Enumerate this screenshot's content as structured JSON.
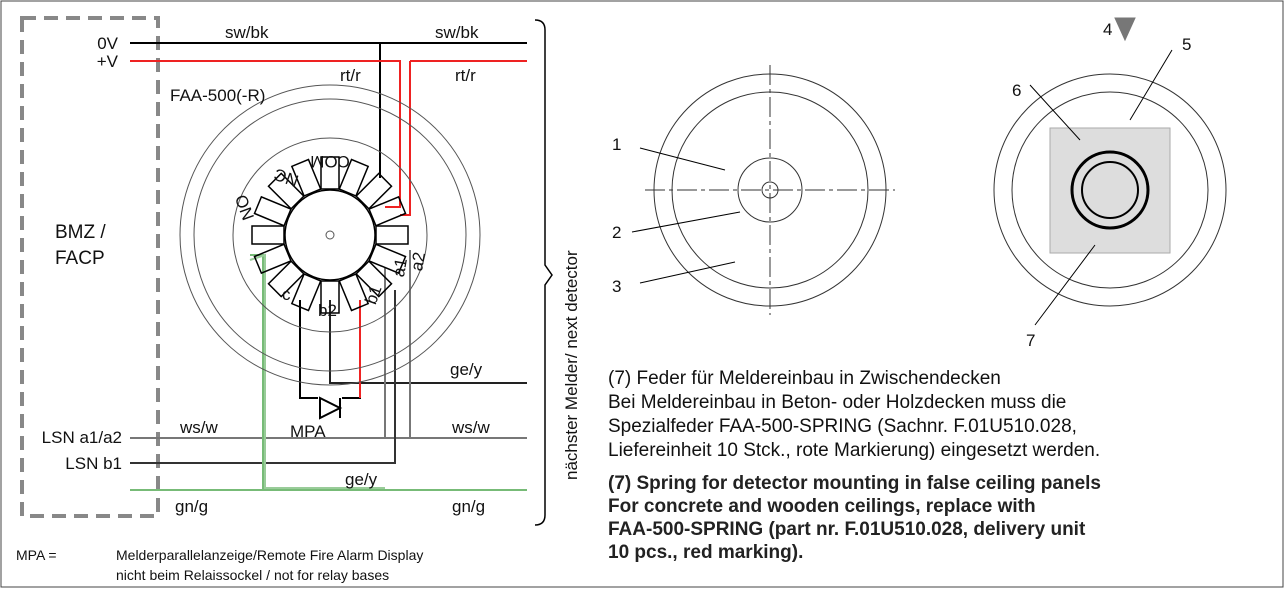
{
  "wiring": {
    "panel_label": [
      "BMZ /",
      "FACP"
    ],
    "terminals": {
      "v0": "0V",
      "vplus": "+V",
      "lsn_a": "LSN a1/a2",
      "lsn_b": "LSN b1"
    },
    "wires": {
      "black_left": "sw/bk",
      "black_right": "sw/bk",
      "red_left": "rt/r",
      "red_right": "rt/r",
      "yellow_upper": "ge/y",
      "yellow_lower": "ge/y",
      "white_left": "ws/w",
      "white_right": "ws/w",
      "green_left": "gn/g",
      "green_right": "gn/g"
    },
    "base_label": "FAA-500(-R)",
    "contacts": {
      "com": "COM",
      "nc": "NC",
      "no": "NO",
      "a1": "a1",
      "a2": "a2",
      "b1": "b1",
      "b2": "b2",
      "c": "c"
    },
    "mpa": "MPA",
    "next_detector": "nächster Melder/ next detector"
  },
  "footnote": {
    "key": "MPA =",
    "lines": [
      "Melderparallelanzeige/Remote Fire Alarm Display",
      "nicht beim Relaissockel / not for relay bases"
    ]
  },
  "callouts": [
    "1",
    "2",
    "3",
    "4",
    "5",
    "6",
    "7"
  ],
  "note_de": [
    "(7) Feder für Meldereinbau in Zwischendecken",
    "Bei Meldereinbau in Beton- oder Holzdecken muss die",
    "Spezialfeder FAA-500-SPRING (Sachnr. F.01U510.028,",
    "Liefereinheit 10 Stck., rote Markierung) eingesetzt werden."
  ],
  "note_en": [
    "(7) Spring for detector mounting in false ceiling panels",
    "For concrete and wooden ceilings, replace with",
    "FAA-500-SPRING (part nr. F.01U510.028, delivery unit",
    "10 pcs., red marking)."
  ]
}
